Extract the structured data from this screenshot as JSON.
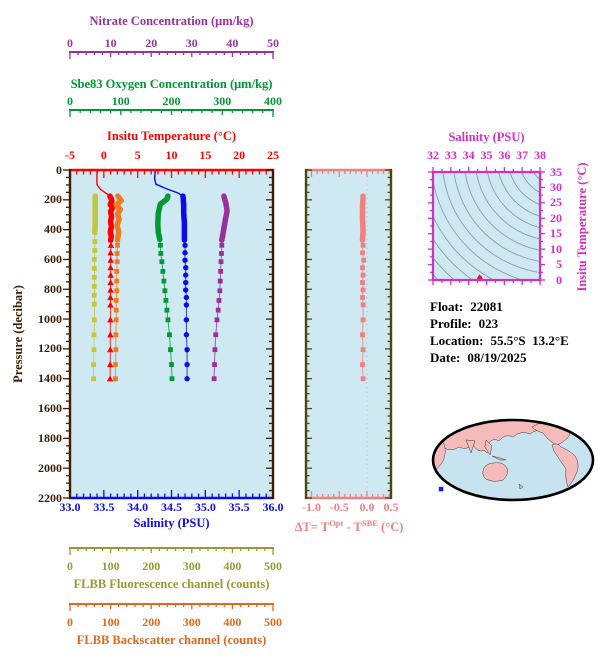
{
  "figure_bg": "#cfe9f3",
  "axes": {
    "nitrate": {
      "title": "Nitrate Concentration (μm/kg)",
      "color": "#993399",
      "ticks": [
        "0",
        "10",
        "20",
        "30",
        "40",
        "50"
      ]
    },
    "oxygen": {
      "title": "Sbe83 Oxygen Concentration (μm/kg)",
      "color": "#009933",
      "ticks": [
        "0",
        "100",
        "200",
        "300",
        "400"
      ]
    },
    "temperature": {
      "title": "Insitu Temperature (°C)",
      "color": "#ff0000",
      "ticks": [
        "-5",
        "0",
        "5",
        "10",
        "15",
        "20",
        "25"
      ]
    },
    "pressure": {
      "title": "Pressure (decibar)",
      "color": "#3d1c02",
      "ticks": [
        "0",
        "200",
        "400",
        "600",
        "800",
        "1000",
        "1200",
        "1400",
        "1600",
        "1800",
        "2000",
        "2200"
      ]
    },
    "salinity": {
      "title": "Salinity (PSU)",
      "color": "#0b0bee",
      "ticks": [
        "33.0",
        "33.5",
        "34.0",
        "34.5",
        "35.0",
        "35.5",
        "36.0"
      ]
    },
    "fluorescence": {
      "title": "FLBB Fluorescence channel (counts)",
      "color": "#999933",
      "ticks": [
        "0",
        "100",
        "200",
        "300",
        "400",
        "500"
      ]
    },
    "backscatter": {
      "title": "FLBB Backscatter channel (counts)",
      "color": "#e06818",
      "ticks": [
        "0",
        "100",
        "200",
        "300",
        "400",
        "500"
      ]
    },
    "delta": {
      "color": "#f08080",
      "frame_tick_color": "#4a4a10",
      "ticks": [
        "-1.0",
        "-0.5",
        "0.0",
        "0.5"
      ],
      "title_pre": "ΔT= T",
      "title_sup1": "Opt",
      "title_mid": " - T",
      "title_sup2": "SBE",
      "title_post": " (°C)"
    },
    "ts_salinity": {
      "title": "Salinity (PSU)",
      "color": "#d62dc3",
      "ticks": [
        "32",
        "33",
        "34",
        "35",
        "36",
        "37",
        "38"
      ]
    },
    "ts_temperature": {
      "title": "Insitu Temperature (°C)",
      "color": "#d62dc3",
      "ticks": [
        "35",
        "30",
        "25",
        "20",
        "15",
        "10",
        "5",
        "0"
      ]
    }
  },
  "info": {
    "float_label": "Float:",
    "float_value": "22081",
    "profile_label": "Profile:",
    "profile_value": "023",
    "location_label": "Location:",
    "location_value": "55.5°S  13.2°E",
    "date_label": "Date:",
    "date_value": "08/19/2025"
  },
  "ts": {
    "contour_color": "#8e9bac",
    "marker_color": "#e8112d"
  },
  "map": {
    "ocean": "#c7e3ef",
    "land": "#f5baba",
    "outline": "#000000",
    "marker_color": "#1a1aff"
  },
  "chart_data": [
    {
      "type": "line",
      "title": "Float 22081 profile 023 vs pressure",
      "ylabel": "Pressure (decibar)",
      "ylim": [
        0,
        2200
      ],
      "y_inverted": true,
      "series": [
        {
          "name": "Insitu Temperature",
          "units": "°C",
          "color": "#ff0000",
          "marker": "triangle",
          "xlim": [
            -5,
            25
          ],
          "surface": [
            [
              0,
              -1.0
            ],
            [
              70,
              -1.02
            ],
            [
              100,
              -1.0
            ],
            [
              130,
              -0.5
            ],
            [
              155,
              0.3
            ],
            [
              175,
              0.9
            ]
          ],
          "dense": [
            [
              175,
              0.9
            ],
            [
              205,
              1.2
            ],
            [
              230,
              0.95
            ],
            [
              255,
              1.25
            ],
            [
              280,
              1.0
            ],
            [
              310,
              1.15
            ],
            [
              345,
              1.0
            ],
            [
              380,
              1.1
            ],
            [
              415,
              0.95
            ],
            [
              445,
              1.1
            ],
            [
              470,
              1.0
            ]
          ],
          "deep": [
            [
              505,
              1.05
            ],
            [
              555,
              1.0
            ],
            [
              605,
              1.02
            ],
            [
              655,
              1.0
            ],
            [
              705,
              1.02
            ],
            [
              755,
              1.0
            ],
            [
              805,
              1.0
            ],
            [
              855,
              0.98
            ],
            [
              905,
              0.98
            ],
            [
              1005,
              0.97
            ],
            [
              1105,
              0.96
            ],
            [
              1205,
              0.95
            ],
            [
              1305,
              0.94
            ],
            [
              1400,
              0.92
            ]
          ]
        },
        {
          "name": "Salinity",
          "units": "PSU",
          "color": "#0b0bee",
          "marker": "circle",
          "xlim": [
            33,
            36
          ],
          "surface": [
            [
              0,
              34.26
            ],
            [
              60,
              34.25
            ],
            [
              95,
              34.27
            ],
            [
              125,
              34.42
            ],
            [
              155,
              34.6
            ],
            [
              175,
              34.67
            ]
          ],
          "dense": [
            [
              175,
              34.67
            ],
            [
              235,
              34.68
            ],
            [
              295,
              34.68
            ],
            [
              355,
              34.69
            ],
            [
              415,
              34.69
            ],
            [
              470,
              34.69
            ]
          ],
          "deep": [
            [
              505,
              34.7
            ],
            [
              555,
              34.7
            ],
            [
              605,
              34.7
            ],
            [
              655,
              34.71
            ],
            [
              705,
              34.71
            ],
            [
              755,
              34.71
            ],
            [
              805,
              34.71
            ],
            [
              855,
              34.72
            ],
            [
              905,
              34.72
            ],
            [
              1005,
              34.72
            ],
            [
              1105,
              34.72
            ],
            [
              1205,
              34.73
            ],
            [
              1305,
              34.73
            ],
            [
              1400,
              34.73
            ]
          ]
        },
        {
          "name": "Sbe83 Oxygen Concentration",
          "units": "μm/kg",
          "color": "#009933",
          "marker": "square",
          "xlim": [
            0,
            400
          ],
          "dense": [
            [
              175,
              193
            ],
            [
              195,
              191
            ],
            [
              230,
              178
            ],
            [
              290,
              174
            ],
            [
              360,
              173
            ],
            [
              420,
              174
            ],
            [
              465,
              177
            ]
          ],
          "deep": [
            [
              505,
              178
            ],
            [
              560,
              179
            ],
            [
              615,
              181
            ],
            [
              680,
              183
            ],
            [
              745,
              185
            ],
            [
              810,
              187
            ],
            [
              875,
              189
            ],
            [
              940,
              191
            ],
            [
              1005,
              193
            ],
            [
              1105,
              196
            ],
            [
              1205,
              198
            ],
            [
              1305,
              200
            ],
            [
              1400,
              201
            ]
          ]
        },
        {
          "name": "Nitrate Concentration",
          "units": "μm/kg",
          "color": "#9b2f9b",
          "marker": "square",
          "xlim": [
            0,
            50
          ],
          "dense": [
            [
              175,
              37.9
            ],
            [
              225,
              38.4
            ],
            [
              275,
              38.7
            ],
            [
              330,
              38.3
            ],
            [
              390,
              37.9
            ],
            [
              440,
              37.6
            ],
            [
              470,
              37.4
            ]
          ],
          "deep": [
            [
              505,
              37.4
            ],
            [
              560,
              37.3
            ],
            [
              615,
              37.2
            ],
            [
              680,
              37.1
            ],
            [
              745,
              37.0
            ],
            [
              810,
              36.9
            ],
            [
              875,
              36.7
            ],
            [
              940,
              36.5
            ],
            [
              1005,
              36.2
            ],
            [
              1105,
              35.9
            ],
            [
              1205,
              35.7
            ],
            [
              1305,
              35.6
            ],
            [
              1400,
              35.5
            ]
          ]
        },
        {
          "name": "FLBB Fluorescence channel",
          "units": "counts",
          "color": "#c6c63e",
          "marker": "square",
          "xlim": [
            0,
            500
          ],
          "dense": [
            [
              175,
              62
            ],
            [
              240,
              62
            ],
            [
              305,
              62
            ],
            [
              370,
              62
            ],
            [
              420,
              61
            ]
          ],
          "deep": [
            [
              480,
              61
            ],
            [
              540,
              61
            ],
            [
              600,
              60
            ],
            [
              660,
              60
            ],
            [
              720,
              60
            ],
            [
              780,
              60
            ],
            [
              840,
              60
            ],
            [
              900,
              60
            ],
            [
              1005,
              60
            ],
            [
              1105,
              59
            ],
            [
              1205,
              59
            ],
            [
              1305,
              58
            ],
            [
              1400,
              58
            ]
          ]
        },
        {
          "name": "FLBB Backscatter channel",
          "units": "counts",
          "color": "#ef7d20",
          "marker": "square",
          "xlim": [
            0,
            500
          ],
          "dense": [
            [
              175,
              118
            ],
            [
              205,
              126
            ],
            [
              235,
              114
            ],
            [
              265,
              124
            ],
            [
              295,
              117
            ],
            [
              330,
              121
            ],
            [
              370,
              116
            ],
            [
              415,
              120
            ],
            [
              470,
              117
            ]
          ],
          "deep": [
            [
              505,
              117
            ],
            [
              560,
              116
            ],
            [
              615,
              116
            ],
            [
              680,
              115
            ],
            [
              745,
              115
            ],
            [
              810,
              115
            ],
            [
              875,
              114
            ],
            [
              940,
              114
            ],
            [
              1005,
              114
            ],
            [
              1105,
              113
            ],
            [
              1205,
              113
            ],
            [
              1305,
              112
            ],
            [
              1400,
              112
            ]
          ]
        }
      ]
    },
    {
      "type": "line",
      "title": "ΔT = T Opt - T SBE",
      "ylabel": "Pressure (decibar)",
      "ylim": [
        0,
        2200
      ],
      "y_inverted": true,
      "series": [
        {
          "name": "delta-T",
          "units": "°C",
          "color": "#f08080",
          "marker": "square",
          "xlim": [
            -1.1,
            0.434
          ],
          "dense": [
            [
              175,
              -0.07
            ],
            [
              250,
              -0.08
            ],
            [
              330,
              -0.08
            ],
            [
              410,
              -0.07
            ],
            [
              470,
              -0.08
            ]
          ],
          "deep": [
            [
              505,
              -0.07
            ],
            [
              555,
              -0.08
            ],
            [
              605,
              -0.06
            ],
            [
              655,
              -0.08
            ],
            [
              705,
              -0.07
            ],
            [
              755,
              -0.08
            ],
            [
              805,
              -0.07
            ],
            [
              855,
              -0.08
            ],
            [
              905,
              -0.07
            ],
            [
              1005,
              -0.07
            ],
            [
              1105,
              -0.08
            ],
            [
              1205,
              -0.07
            ],
            [
              1305,
              -0.08
            ],
            [
              1400,
              -0.07
            ]
          ]
        }
      ]
    },
    {
      "type": "scatter",
      "title": "T-S diagram",
      "xlabel": "Salinity (PSU)",
      "ylabel": "Insitu Temperature (°C)",
      "xlim": [
        32,
        38
      ],
      "ylim": [
        0,
        35
      ],
      "points": [
        [
          34.6,
          0.7
        ],
        [
          34.68,
          0.4
        ]
      ]
    }
  ]
}
